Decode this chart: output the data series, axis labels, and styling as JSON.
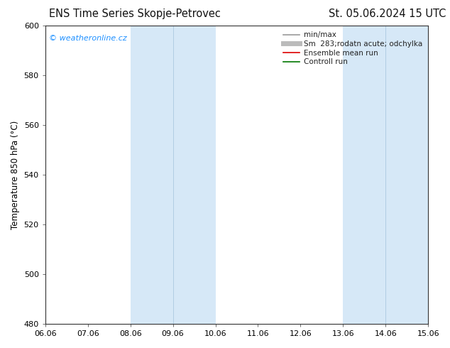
{
  "title_left": "ENS Time Series Skopje-Petrovec",
  "title_right": "St. 05.06.2024 15 UTC",
  "ylabel": "Temperature 850 hPa (°C)",
  "xlabel_ticks": [
    "06.06",
    "07.06",
    "08.06",
    "09.06",
    "10.06",
    "11.06",
    "12.06",
    "13.06",
    "14.06",
    "15.06"
  ],
  "ylim": [
    480,
    600
  ],
  "xlim": [
    0,
    9
  ],
  "yticks": [
    480,
    500,
    520,
    540,
    560,
    580,
    600
  ],
  "shaded_bands": [
    {
      "x_start": 2,
      "x_end": 4,
      "color": "#d6e8f7"
    },
    {
      "x_start": 7,
      "x_end": 9,
      "color": "#d6e8f7"
    }
  ],
  "inner_vertical_lines": [
    {
      "x": 3,
      "color": "#aac8e0",
      "lw": 0.6
    },
    {
      "x": 8,
      "color": "#aac8e0",
      "lw": 0.6
    }
  ],
  "legend_entries": [
    {
      "label": "min/max",
      "color": "#999999",
      "lw": 1.2
    },
    {
      "label": "Sm  283;rodatn acute; odchylka",
      "color": "#bbbbbb",
      "lw": 5
    },
    {
      "label": "Ensemble mean run",
      "color": "#dd0000",
      "lw": 1.2
    },
    {
      "label": "Controll run",
      "color": "#007700",
      "lw": 1.2
    }
  ],
  "watermark_text": "© weatheronline.cz",
  "watermark_color": "#1e90ff",
  "bg_color": "#ffffff",
  "plot_bg_color": "#ffffff",
  "title_fontsize": 10.5,
  "axis_fontsize": 8.5,
  "tick_fontsize": 8,
  "legend_fontsize": 7.5
}
